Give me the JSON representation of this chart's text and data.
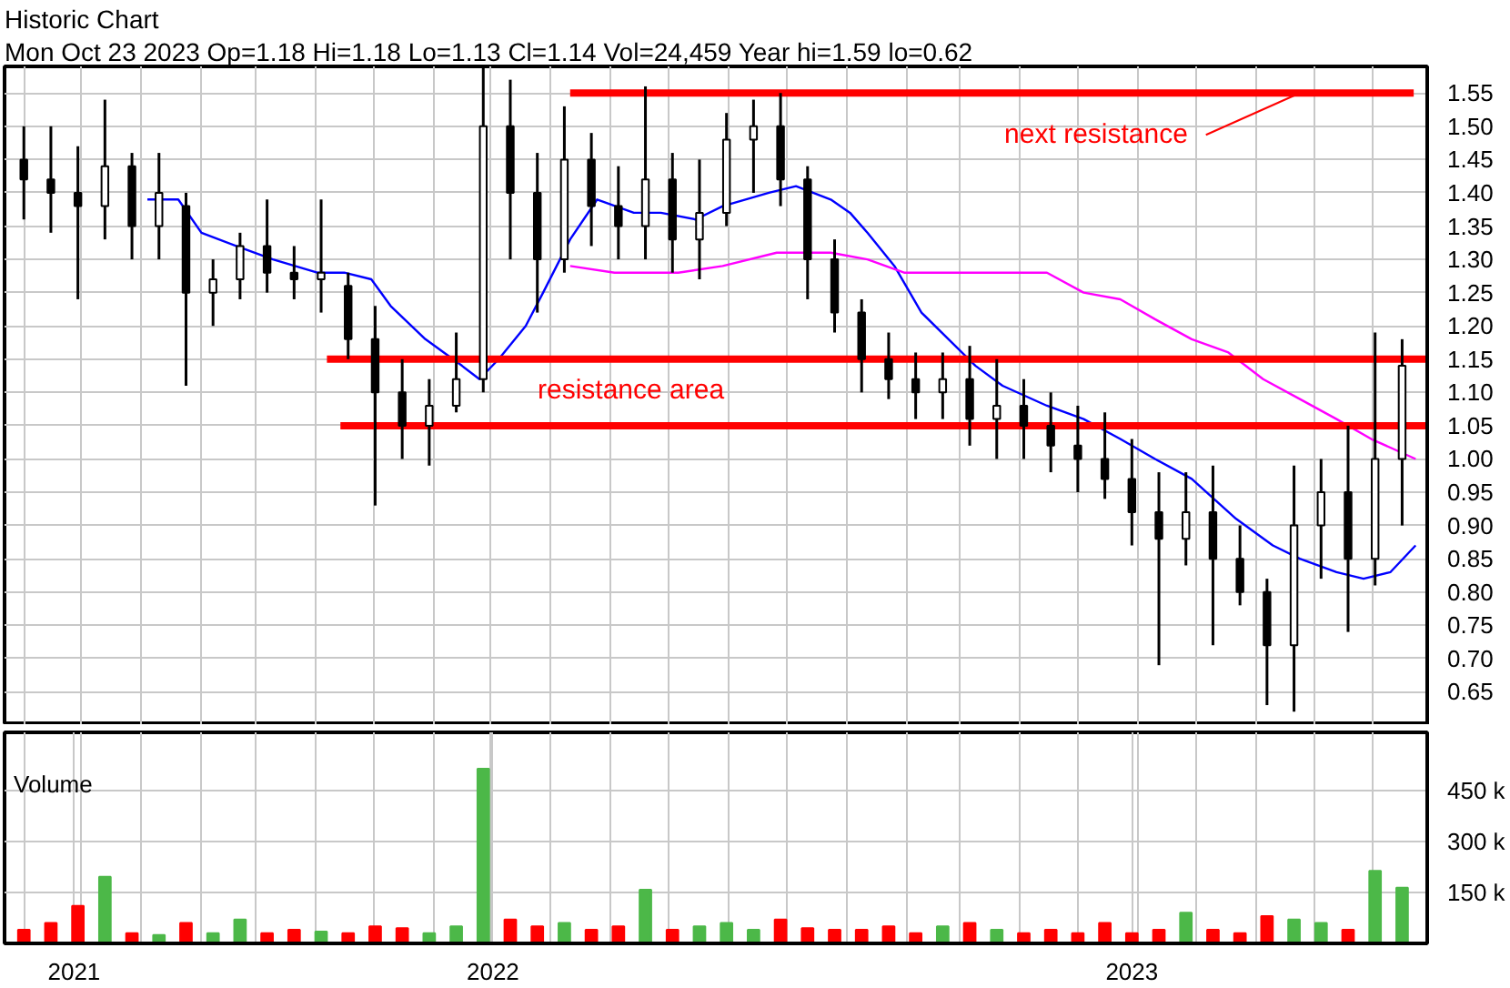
{
  "chart_data": [
    {
      "type": "candlestick",
      "title": "Historic Chart",
      "subtitle": "Mon Oct 23 2023   Op=1.18   Hi=1.18   Lo=1.13   Cl=1.14   Vol=24,459   Year hi=1.59   lo=0.62",
      "color": "#000000",
      "x": [
        "2021-11-01",
        "2021-11-15",
        "2021-11-29",
        "2021-12-13",
        "2021-12-27",
        "2022-01-10",
        "2022-01-24",
        "2022-02-07",
        "2022-02-21",
        "2022-03-07",
        "2022-03-21",
        "2022-04-04",
        "2022-04-18",
        "2022-05-02",
        "2022-05-16",
        "2022-05-30",
        "2022-06-13",
        "2022-06-27",
        "2022-07-11",
        "2022-07-25",
        "2022-08-08",
        "2022-08-22",
        "2022-09-05",
        "2022-09-19",
        "2022-10-03",
        "2022-10-17",
        "2022-10-31",
        "2022-11-14",
        "2022-11-28",
        "2022-12-12",
        "2022-12-26",
        "2023-01-09",
        "2023-01-23",
        "2023-02-06",
        "2023-02-20",
        "2023-03-06",
        "2023-03-20",
        "2023-04-03",
        "2023-04-17",
        "2023-05-01",
        "2023-05-15",
        "2023-05-29",
        "2023-06-12",
        "2023-06-26",
        "2023-07-10",
        "2023-07-24",
        "2023-08-07",
        "2023-08-21",
        "2023-09-04",
        "2023-09-18",
        "2023-10-02",
        "2023-10-16"
      ],
      "ohlc": [
        [
          1.45,
          1.5,
          1.36,
          1.42
        ],
        [
          1.42,
          1.5,
          1.34,
          1.4
        ],
        [
          1.4,
          1.47,
          1.24,
          1.38
        ],
        [
          1.38,
          1.54,
          1.33,
          1.44
        ],
        [
          1.44,
          1.46,
          1.3,
          1.35
        ],
        [
          1.35,
          1.46,
          1.3,
          1.4
        ],
        [
          1.38,
          1.4,
          1.11,
          1.25
        ],
        [
          1.25,
          1.3,
          1.2,
          1.27
        ],
        [
          1.27,
          1.34,
          1.24,
          1.32
        ],
        [
          1.32,
          1.39,
          1.25,
          1.28
        ],
        [
          1.28,
          1.32,
          1.24,
          1.27
        ],
        [
          1.27,
          1.39,
          1.22,
          1.28
        ],
        [
          1.26,
          1.28,
          1.15,
          1.18
        ],
        [
          1.18,
          1.23,
          0.93,
          1.1
        ],
        [
          1.1,
          1.15,
          1.0,
          1.05
        ],
        [
          1.05,
          1.12,
          0.99,
          1.08
        ],
        [
          1.08,
          1.19,
          1.07,
          1.12
        ],
        [
          1.12,
          1.59,
          1.1,
          1.5
        ],
        [
          1.5,
          1.57,
          1.3,
          1.4
        ],
        [
          1.4,
          1.46,
          1.22,
          1.3
        ],
        [
          1.3,
          1.53,
          1.28,
          1.45
        ],
        [
          1.45,
          1.49,
          1.32,
          1.38
        ],
        [
          1.38,
          1.44,
          1.3,
          1.35
        ],
        [
          1.35,
          1.56,
          1.3,
          1.42
        ],
        [
          1.42,
          1.46,
          1.28,
          1.33
        ],
        [
          1.33,
          1.45,
          1.27,
          1.37
        ],
        [
          1.37,
          1.52,
          1.35,
          1.48
        ],
        [
          1.48,
          1.54,
          1.4,
          1.5
        ],
        [
          1.5,
          1.55,
          1.38,
          1.42
        ],
        [
          1.42,
          1.44,
          1.24,
          1.3
        ],
        [
          1.3,
          1.33,
          1.19,
          1.22
        ],
        [
          1.22,
          1.24,
          1.1,
          1.15
        ],
        [
          1.15,
          1.19,
          1.09,
          1.12
        ],
        [
          1.12,
          1.16,
          1.06,
          1.1
        ],
        [
          1.1,
          1.16,
          1.06,
          1.12
        ],
        [
          1.12,
          1.17,
          1.02,
          1.06
        ],
        [
          1.06,
          1.15,
          1.0,
          1.08
        ],
        [
          1.08,
          1.12,
          1.0,
          1.05
        ],
        [
          1.05,
          1.1,
          0.98,
          1.02
        ],
        [
          1.02,
          1.08,
          0.95,
          1.0
        ],
        [
          1.0,
          1.07,
          0.94,
          0.97
        ],
        [
          0.97,
          1.03,
          0.87,
          0.92
        ],
        [
          0.92,
          0.98,
          0.69,
          0.88
        ],
        [
          0.88,
          0.98,
          0.84,
          0.92
        ],
        [
          0.92,
          0.99,
          0.72,
          0.85
        ],
        [
          0.85,
          0.9,
          0.78,
          0.8
        ],
        [
          0.8,
          0.82,
          0.63,
          0.72
        ],
        [
          0.72,
          0.99,
          0.62,
          0.9
        ],
        [
          0.9,
          1.0,
          0.82,
          0.95
        ],
        [
          0.95,
          1.05,
          0.74,
          0.85
        ],
        [
          0.85,
          1.19,
          0.81,
          1.0
        ],
        [
          1.0,
          1.18,
          0.9,
          1.14
        ]
      ],
      "series": [
        {
          "type": "line",
          "color": "#0000ff",
          "x": [
            "2022-01-04",
            "2022-01-20",
            "2022-02-01",
            "2022-02-19",
            "2022-03-10",
            "2022-04-02",
            "2022-04-16",
            "2022-04-30",
            "2022-05-10",
            "2022-05-28",
            "2022-06-16",
            "2022-06-25",
            "2022-07-05",
            "2022-07-19",
            "2022-07-28",
            "2022-08-11",
            "2022-08-25",
            "2022-09-13",
            "2022-09-27",
            "2022-10-15",
            "2022-10-29",
            "2022-11-22",
            "2022-12-06",
            "2022-12-24",
            "2023-01-03",
            "2023-01-12",
            "2023-01-26",
            "2023-02-09",
            "2023-02-23",
            "2023-03-09",
            "2023-03-23",
            "2023-04-15",
            "2023-05-04",
            "2023-05-23",
            "2023-06-10",
            "2023-06-29",
            "2023-07-22",
            "2023-08-10",
            "2023-08-24",
            "2023-09-12",
            "2023-09-26",
            "2023-10-10",
            "2023-10-23"
          ],
          "values": [
            1.39,
            1.39,
            1.34,
            1.32,
            1.3,
            1.28,
            1.28,
            1.27,
            1.23,
            1.18,
            1.14,
            1.12,
            1.15,
            1.2,
            1.25,
            1.33,
            1.39,
            1.37,
            1.37,
            1.36,
            1.38,
            1.4,
            1.41,
            1.39,
            1.37,
            1.34,
            1.29,
            1.22,
            1.18,
            1.14,
            1.11,
            1.08,
            1.06,
            1.03,
            1.0,
            0.97,
            0.91,
            0.87,
            0.85,
            0.83,
            0.82,
            0.83,
            0.87
          ]
        },
        {
          "type": "line",
          "color": "#ff00ff",
          "x": [
            "2022-08-11",
            "2022-09-03",
            "2022-10-06",
            "2022-10-29",
            "2022-11-26",
            "2022-12-24",
            "2023-01-12",
            "2023-01-31",
            "2023-03-09",
            "2023-04-15",
            "2023-05-04",
            "2023-05-23",
            "2023-06-10",
            "2023-06-29",
            "2023-07-18",
            "2023-08-05",
            "2023-08-24",
            "2023-09-12",
            "2023-09-30",
            "2023-10-23"
          ],
          "values": [
            1.29,
            1.28,
            1.28,
            1.29,
            1.31,
            1.31,
            1.3,
            1.28,
            1.28,
            1.28,
            1.25,
            1.24,
            1.21,
            1.18,
            1.16,
            1.12,
            1.09,
            1.06,
            1.03,
            1.0
          ]
        },
        {
          "type": "line",
          "color": "#ff0000",
          "x": [
            "2022-08-11",
            "2023-10-22"
          ],
          "values": [
            1.55,
            1.55
          ]
        },
        {
          "type": "line",
          "color": "#ff0000",
          "x": [
            "2022-04-07",
            "2023-10-29"
          ],
          "values": [
            1.15,
            1.15
          ]
        },
        {
          "type": "line",
          "color": "#ff0000",
          "x": [
            "2022-04-14",
            "2023-10-29"
          ],
          "values": [
            1.05,
            1.05
          ]
        }
      ],
      "annotations": [
        {
          "text": "next resistance",
          "x": "2023-08-24",
          "y": 1.55
        },
        "resistance area"
      ],
      "xlim": [
        "2021-10-22",
        "2023-10-29"
      ],
      "ylim": [
        0.6,
        1.59
      ],
      "yticks": [
        {
          "value": 0.65,
          "label": "0.65"
        },
        {
          "value": 0.7,
          "label": "0.70"
        },
        {
          "value": 0.75,
          "label": "0.75"
        },
        {
          "value": 0.8,
          "label": "0.80"
        },
        {
          "value": 0.85,
          "label": "0.85"
        },
        {
          "value": 0.9,
          "label": "0.90"
        },
        {
          "value": 0.95,
          "label": "0.95"
        },
        {
          "value": 1.0,
          "label": "1.00"
        },
        {
          "value": 1.05,
          "label": "1.05"
        },
        {
          "value": 1.1,
          "label": "1.10"
        },
        {
          "value": 1.15,
          "label": "1.15"
        },
        {
          "value": 1.2,
          "label": "1.20"
        },
        {
          "value": 1.25,
          "label": "1.25"
        },
        {
          "value": 1.3,
          "label": "1.30"
        },
        {
          "value": 1.35,
          "label": "1.35"
        },
        {
          "value": 1.4,
          "label": "1.40"
        },
        {
          "value": 1.45,
          "label": "1.45"
        },
        {
          "value": 1.5,
          "label": "1.50"
        },
        {
          "value": 1.55,
          "label": "1.55"
        }
      ],
      "xticks": [
        {
          "value": "2021-11-01",
          "label": null
        },
        {
          "value": "2021-12-01",
          "label": null
        },
        {
          "value": "2022-01-01",
          "label": null
        },
        {
          "value": "2022-02-01",
          "label": null
        },
        {
          "value": "2022-03-01",
          "label": null
        },
        {
          "value": "2022-04-01",
          "label": null
        },
        {
          "value": "2022-05-01",
          "label": null
        },
        {
          "value": "2022-06-01",
          "label": null
        },
        {
          "value": "2022-07-01",
          "label": null
        },
        {
          "value": "2022-08-01",
          "label": null
        },
        {
          "value": "2022-09-01",
          "label": null
        },
        {
          "value": "2022-10-01",
          "label": null
        },
        {
          "value": "2022-11-01",
          "label": null
        },
        {
          "value": "2022-12-01",
          "label": null
        },
        {
          "value": "2023-01-01",
          "label": null
        },
        {
          "value": "2023-02-01",
          "label": null
        },
        {
          "value": "2023-03-01",
          "label": null
        },
        {
          "value": "2023-04-01",
          "label": null
        },
        {
          "value": "2023-05-01",
          "label": null
        },
        {
          "value": "2023-06-01",
          "label": null
        },
        {
          "value": "2023-07-01",
          "label": null
        },
        {
          "value": "2023-08-01",
          "label": null
        },
        {
          "value": "2023-09-01",
          "label": null
        },
        {
          "value": "2023-10-01",
          "label": null
        }
      ],
      "grid": true,
      "tick_labels": "y"
    },
    {
      "type": "bar",
      "title": "Volume",
      "x": [
        "2021-11-01",
        "2021-11-15",
        "2021-11-29",
        "2021-12-13",
        "2021-12-27",
        "2022-01-10",
        "2022-01-24",
        "2022-02-07",
        "2022-02-21",
        "2022-03-07",
        "2022-03-21",
        "2022-04-04",
        "2022-04-18",
        "2022-05-02",
        "2022-05-16",
        "2022-05-30",
        "2022-06-13",
        "2022-06-27",
        "2022-07-11",
        "2022-07-25",
        "2022-08-08",
        "2022-08-22",
        "2022-09-05",
        "2022-09-19",
        "2022-10-03",
        "2022-10-17",
        "2022-10-31",
        "2022-11-14",
        "2022-11-28",
        "2022-12-12",
        "2022-12-26",
        "2023-01-09",
        "2023-01-23",
        "2023-02-06",
        "2023-02-20",
        "2023-03-06",
        "2023-03-20",
        "2023-04-03",
        "2023-04-17",
        "2023-05-01",
        "2023-05-15",
        "2023-05-29",
        "2023-06-12",
        "2023-06-26",
        "2023-07-10",
        "2023-07-24",
        "2023-08-07",
        "2023-08-21",
        "2023-09-04",
        "2023-09-18",
        "2023-10-02",
        "2023-10-16"
      ],
      "values": [
        40000,
        60000,
        110000,
        196000,
        30000,
        25000,
        60000,
        30000,
        70000,
        30000,
        40000,
        35000,
        30000,
        50000,
        45000,
        30000,
        50000,
        513000,
        70000,
        50000,
        60000,
        40000,
        50000,
        158000,
        40000,
        50000,
        60000,
        40000,
        70000,
        45000,
        40000,
        40000,
        50000,
        30000,
        50000,
        60000,
        40000,
        30000,
        40000,
        30000,
        60000,
        30000,
        40000,
        90000,
        40000,
        30000,
        80000,
        70000,
        60000,
        40000,
        213000,
        164000
      ],
      "colors": [
        "#ff0000",
        "#ff0000",
        "#ff0000",
        "#4cb848",
        "#ff0000",
        "#4cb848",
        "#ff0000",
        "#4cb848",
        "#4cb848",
        "#ff0000",
        "#ff0000",
        "#4cb848",
        "#ff0000",
        "#ff0000",
        "#ff0000",
        "#4cb848",
        "#4cb848",
        "#4cb848",
        "#ff0000",
        "#ff0000",
        "#4cb848",
        "#ff0000",
        "#ff0000",
        "#4cb848",
        "#ff0000",
        "#4cb848",
        "#4cb848",
        "#4cb848",
        "#ff0000",
        "#ff0000",
        "#ff0000",
        "#ff0000",
        "#ff0000",
        "#ff0000",
        "#4cb848",
        "#ff0000",
        "#4cb848",
        "#ff0000",
        "#ff0000",
        "#ff0000",
        "#ff0000",
        "#ff0000",
        "#ff0000",
        "#4cb848",
        "#ff0000",
        "#ff0000",
        "#ff0000",
        "#4cb848",
        "#4cb848",
        "#ff0000",
        "#4cb848",
        "#4cb848"
      ],
      "xlim": [
        "2021-10-22",
        "2023-10-29"
      ],
      "ylim": [
        0,
        620000
      ],
      "yticks": [
        {
          "value": 150000,
          "label": "150 k"
        },
        {
          "value": 300000,
          "label": "300 k"
        },
        {
          "value": 450000,
          "label": "450 k"
        }
      ],
      "xticks": [
        {
          "value": "2021-11-01",
          "label": null
        },
        {
          "value": "2021-11-27",
          "label": "2021"
        },
        {
          "value": "2021-12-01",
          "label": null
        },
        {
          "value": "2022-01-01",
          "label": null
        },
        {
          "value": "2022-02-01",
          "label": null
        },
        {
          "value": "2022-03-01",
          "label": null
        },
        {
          "value": "2022-04-01",
          "label": null
        },
        {
          "value": "2022-05-01",
          "label": null
        },
        {
          "value": "2022-06-01",
          "label": null
        },
        {
          "value": "2022-07-01",
          "label": null
        },
        {
          "value": "2022-07-02",
          "label": "2022"
        },
        {
          "value": "2022-08-01",
          "label": null
        },
        {
          "value": "2022-09-01",
          "label": null
        },
        {
          "value": "2022-10-01",
          "label": null
        },
        {
          "value": "2022-11-01",
          "label": null
        },
        {
          "value": "2022-12-01",
          "label": null
        },
        {
          "value": "2023-01-01",
          "label": null
        },
        {
          "value": "2023-02-01",
          "label": null
        },
        {
          "value": "2023-03-01",
          "label": null
        },
        {
          "value": "2023-04-01",
          "label": null
        },
        {
          "value": "2023-05-01",
          "label": null
        },
        {
          "value": "2023-05-29",
          "label": "2023"
        },
        {
          "value": "2023-06-01",
          "label": null
        },
        {
          "value": "2023-07-01",
          "label": null
        },
        {
          "value": "2023-08-01",
          "label": null
        },
        {
          "value": "2023-09-01",
          "label": null
        },
        {
          "value": "2023-10-01",
          "label": null
        }
      ],
      "grid": true
    }
  ]
}
